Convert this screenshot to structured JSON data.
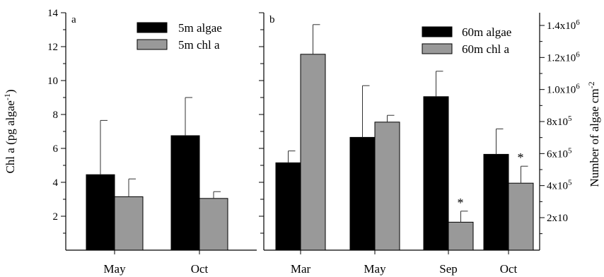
{
  "chart_data": [
    {
      "type": "bar",
      "panel": "a",
      "categories": [
        "May",
        "Oct"
      ],
      "ylabel": "Chl a (pg algae",
      "ylabel_sup": "-1",
      "ylabel_end": ")",
      "ylim": [
        0,
        14
      ],
      "yticks": [
        "2",
        "4",
        "6",
        "8",
        "10",
        "12",
        "14"
      ],
      "series": [
        {
          "name": "5m algae",
          "color": "#000000",
          "values": [
            4.45,
            6.75
          ],
          "errors": [
            3.2,
            2.25
          ]
        },
        {
          "name": "5m chl a",
          "color": "#999999",
          "values": [
            3.15,
            3.05
          ],
          "errors": [
            1.05,
            0.4
          ]
        }
      ],
      "legend": "top-right"
    },
    {
      "type": "bar",
      "panel": "b",
      "categories": [
        "Mar",
        "May",
        "Sep",
        "Oct"
      ],
      "ylim": [
        0,
        14
      ],
      "y2label": "Number of algae cm",
      "y2label_sup": "-2",
      "y2ticks": [
        {
          "base": "2x10",
          "exp": ""
        },
        {
          "base": "4x10",
          "exp": "5"
        },
        {
          "base": "6x10",
          "exp": "5"
        },
        {
          "base": "8x10",
          "exp": "5"
        },
        {
          "base": "1.0x10",
          "exp": "6"
        },
        {
          "base": "1.2x10",
          "exp": "6"
        },
        {
          "base": "1.4x10",
          "exp": "6"
        }
      ],
      "series": [
        {
          "name": "60m algae",
          "color": "#000000",
          "values": [
            5.15,
            6.65,
            9.05,
            5.65
          ],
          "errors": [
            0.7,
            3.05,
            1.5,
            1.5
          ]
        },
        {
          "name": "60m chl a",
          "color": "#999999",
          "values": [
            11.55,
            7.55,
            1.65,
            3.95
          ],
          "errors": [
            1.75,
            0.4,
            0.65,
            1.0
          ]
        }
      ],
      "annotations": [
        {
          "text": "*",
          "category": "Sep",
          "series": "60m chl a"
        },
        {
          "text": "*",
          "category": "Oct",
          "series": "60m chl a"
        }
      ],
      "legend": "top-right"
    }
  ]
}
